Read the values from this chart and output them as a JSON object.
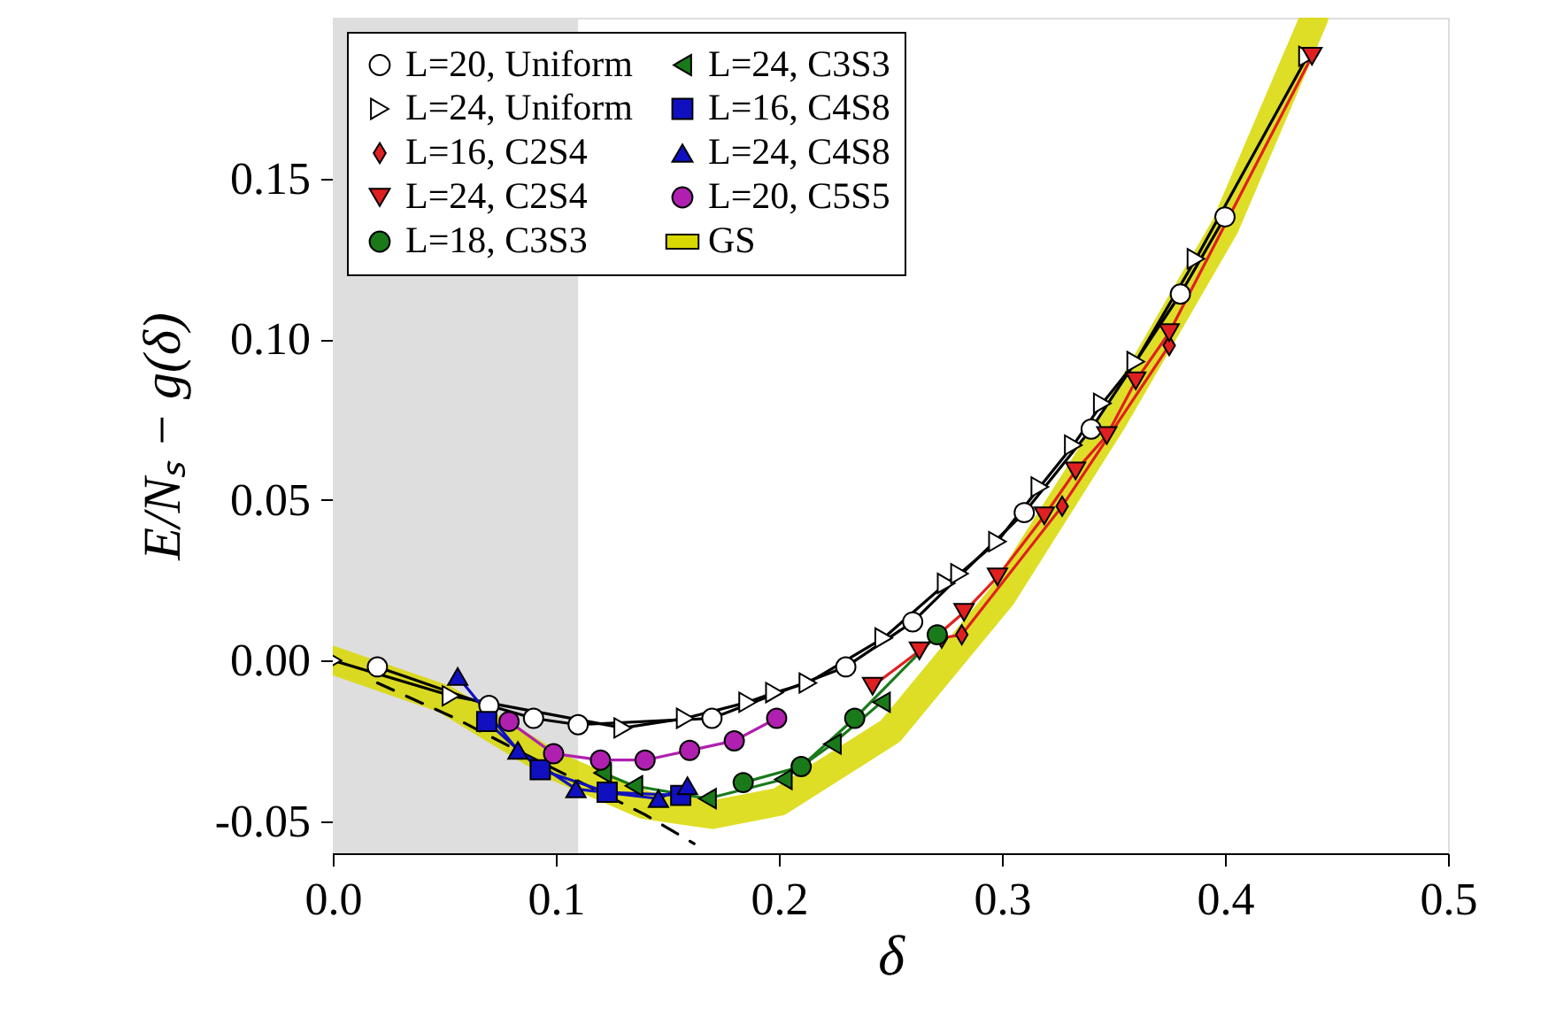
{
  "chart_data": {
    "type": "line",
    "xlabel": "δ",
    "ylabel": "E/Nₛ − g(δ)",
    "xlim": [
      0,
      0.5
    ],
    "ylim": [
      -0.06,
      0.2
    ],
    "xticks": [
      {
        "value": 0,
        "label": "0.0"
      },
      {
        "value": 0.1,
        "label": "0.1"
      },
      {
        "value": 0.2,
        "label": "0.2"
      },
      {
        "value": 0.3,
        "label": "0.3"
      },
      {
        "value": 0.4,
        "label": "0.4"
      },
      {
        "value": 0.5,
        "label": "0.5"
      }
    ],
    "yticks": [
      {
        "value": -0.05,
        "label": "-0.05"
      },
      {
        "value": 0,
        "label": "0.00"
      },
      {
        "value": 0.05,
        "label": "0.05"
      },
      {
        "value": 0.1,
        "label": "0.10"
      },
      {
        "value": 0.15,
        "label": "0.15"
      }
    ],
    "legend": "top left",
    "bands": [
      {
        "axis": "x",
        "from": 0,
        "to": 0.11,
        "color": "#dedede"
      }
    ],
    "series": [
      {
        "type": "line",
        "marker": "none",
        "line_style": "dashed",
        "color": "#000000",
        "x": [
          0.02,
          0.055,
          0.08,
          0.14,
          0.162
        ],
        "values": [
          -0.007,
          -0.018,
          -0.027,
          -0.048,
          -0.057
        ]
      },
      {
        "marker": "none",
        "color": "#000000",
        "x": [
          0.02,
          0.07,
          0.09,
          0.11,
          0.17,
          0.23,
          0.26,
          0.31,
          0.34,
          0.38,
          0.4
        ],
        "values": [
          -0.002,
          -0.014,
          -0.018,
          -0.02,
          -0.018,
          -0.002,
          0.012,
          0.046,
          0.072,
          0.114,
          0.138
        ]
      },
      {
        "marker": "none",
        "color": "#000000",
        "x": [
          0.0,
          0.053,
          0.13,
          0.158,
          0.186,
          0.198,
          0.213,
          0.247,
          0.275,
          0.281,
          0.298,
          0.317,
          0.332,
          0.345,
          0.36,
          0.387,
          0.437
        ],
        "values": [
          0.0,
          -0.011,
          -0.021,
          -0.018,
          -0.013,
          -0.01,
          -0.007,
          0.007,
          0.024,
          0.027,
          0.037,
          0.054,
          0.067,
          0.08,
          0.093,
          0.125,
          0.188
        ]
      },
      {
        "name": "L=20, Uniform",
        "type": "scatter",
        "marker": "circle",
        "color": "#ffffff",
        "x": [
          0.02,
          0.07,
          0.09,
          0.11,
          0.17,
          0.23,
          0.26,
          0.31,
          0.34,
          0.38,
          0.4
        ],
        "values": [
          -0.002,
          -0.014,
          -0.018,
          -0.02,
          -0.018,
          -0.002,
          0.012,
          0.046,
          0.072,
          0.114,
          0.138
        ]
      },
      {
        "name": "L=24, Uniform",
        "type": "scatter",
        "marker": "triangle-right",
        "color": "#ffffff",
        "x": [
          0.0,
          0.053,
          0.13,
          0.158,
          0.186,
          0.198,
          0.213,
          0.247,
          0.275,
          0.281,
          0.298,
          0.317,
          0.332,
          0.345,
          0.36,
          0.387,
          0.437
        ],
        "values": [
          0.0,
          -0.011,
          -0.021,
          -0.018,
          -0.013,
          -0.01,
          -0.007,
          0.007,
          0.024,
          0.027,
          0.037,
          0.054,
          0.067,
          0.08,
          0.093,
          0.125,
          0.188
        ]
      },
      {
        "name": "L=16, C2S4",
        "marker": "diamond",
        "color": "#e02020",
        "x": [
          0.273,
          0.282,
          0.327,
          0.375
        ],
        "values": [
          0.007,
          0.008,
          0.048,
          0.098
        ]
      },
      {
        "name": "L=24, C2S4",
        "marker": "triangle-down",
        "color": "#e02020",
        "x": [
          0.242,
          0.263,
          0.283,
          0.298,
          0.319,
          0.333,
          0.347,
          0.36,
          0.375,
          0.439
        ],
        "values": [
          -0.008,
          0.003,
          0.015,
          0.026,
          0.045,
          0.059,
          0.07,
          0.087,
          0.102,
          0.188
        ]
      },
      {
        "name": "L=18, C3S3",
        "marker": "circle",
        "color": "#1a7a1a",
        "x": [
          0.184,
          0.21,
          0.234,
          0.271
        ],
        "values": [
          -0.038,
          -0.033,
          -0.018,
          0.008
        ]
      },
      {
        "name": "L=24, C3S3",
        "marker": "triangle-left",
        "color": "#1a7a1a",
        "x": [
          0.121,
          0.135,
          0.168,
          0.202,
          0.224,
          0.246
        ],
        "values": [
          -0.035,
          -0.039,
          -0.043,
          -0.037,
          -0.026,
          -0.013
        ]
      },
      {
        "name": "L=16, C4S8",
        "marker": "square",
        "color": "#1010c0",
        "x": [
          0.069,
          0.093,
          0.123,
          0.156
        ],
        "values": [
          -0.019,
          -0.034,
          -0.041,
          -0.042
        ]
      },
      {
        "name": "L=24, C4S8",
        "marker": "triangle-up",
        "color": "#1010c0",
        "x": [
          0.056,
          0.083,
          0.109,
          0.146,
          0.159
        ],
        "values": [
          -0.005,
          -0.028,
          -0.04,
          -0.043,
          -0.039
        ]
      },
      {
        "name": "L=20, C5S5",
        "marker": "circle",
        "color": "#b020b0",
        "x": [
          0.079,
          0.099,
          0.12,
          0.14,
          0.16,
          0.18,
          0.199
        ],
        "values": [
          -0.019,
          -0.029,
          -0.031,
          -0.031,
          -0.028,
          -0.025,
          -0.018
        ]
      },
      {
        "name": "GS",
        "type": "line",
        "marker": "none",
        "color": "#d8d800",
        "x": [
          0,
          0.05,
          0.1,
          0.14,
          0.17,
          0.2,
          0.25,
          0.3,
          0.35,
          0.4,
          0.44
        ],
        "values": [
          0.0,
          -0.012,
          -0.033,
          -0.045,
          -0.048,
          -0.044,
          -0.022,
          0.02,
          0.075,
          0.135,
          0.2
        ]
      }
    ]
  }
}
